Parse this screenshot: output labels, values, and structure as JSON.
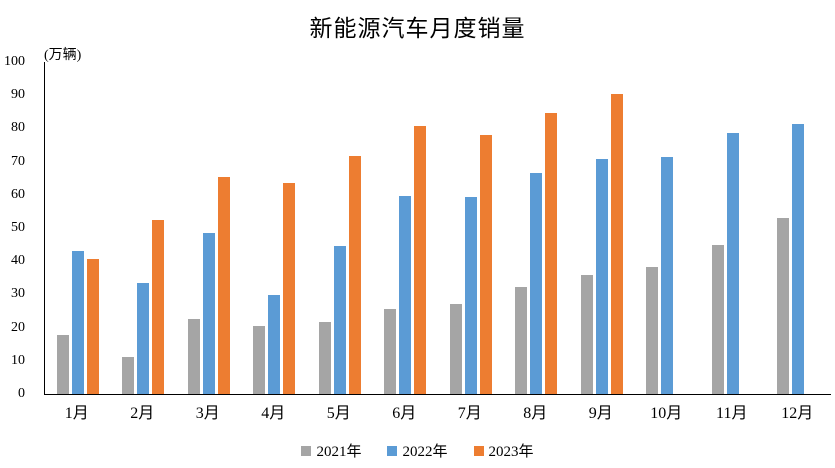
{
  "title": "新能源汽车月度销量",
  "unit_label": "(万辆)",
  "colors": {
    "series_2021": "#A5A5A5",
    "series_2022": "#5B9BD5",
    "series_2023": "#ED7D31",
    "axis": "#000000",
    "text": "#000000",
    "background": "#FFFFFF"
  },
  "chart_data": {
    "type": "bar",
    "title": "新能源汽车月度销量",
    "ylabel": "(万辆)",
    "xlabel": "",
    "categories": [
      "1月",
      "2月",
      "3月",
      "4月",
      "5月",
      "6月",
      "7月",
      "8月",
      "9月",
      "10月",
      "11月",
      "12月"
    ],
    "series": [
      {
        "name": "2021年",
        "color": "#A5A5A5",
        "values": [
          17.9,
          11.0,
          22.6,
          20.6,
          21.7,
          25.6,
          27.1,
          32.1,
          35.7,
          38.3,
          45.0,
          53.1
        ]
      },
      {
        "name": "2022年",
        "color": "#5B9BD5",
        "values": [
          43.1,
          33.4,
          48.4,
          29.9,
          44.7,
          59.6,
          59.3,
          66.6,
          70.8,
          71.4,
          78.6,
          81.4
        ]
      },
      {
        "name": "2023年",
        "color": "#ED7D31",
        "values": [
          40.8,
          52.5,
          65.3,
          63.6,
          71.7,
          80.6,
          78.0,
          84.6,
          90.4,
          null,
          null,
          null
        ]
      }
    ],
    "ylim": [
      0,
      100
    ],
    "yticks": [
      0,
      10,
      20,
      30,
      40,
      50,
      60,
      70,
      80,
      90,
      100
    ],
    "grid": false,
    "legend_position": "bottom"
  }
}
